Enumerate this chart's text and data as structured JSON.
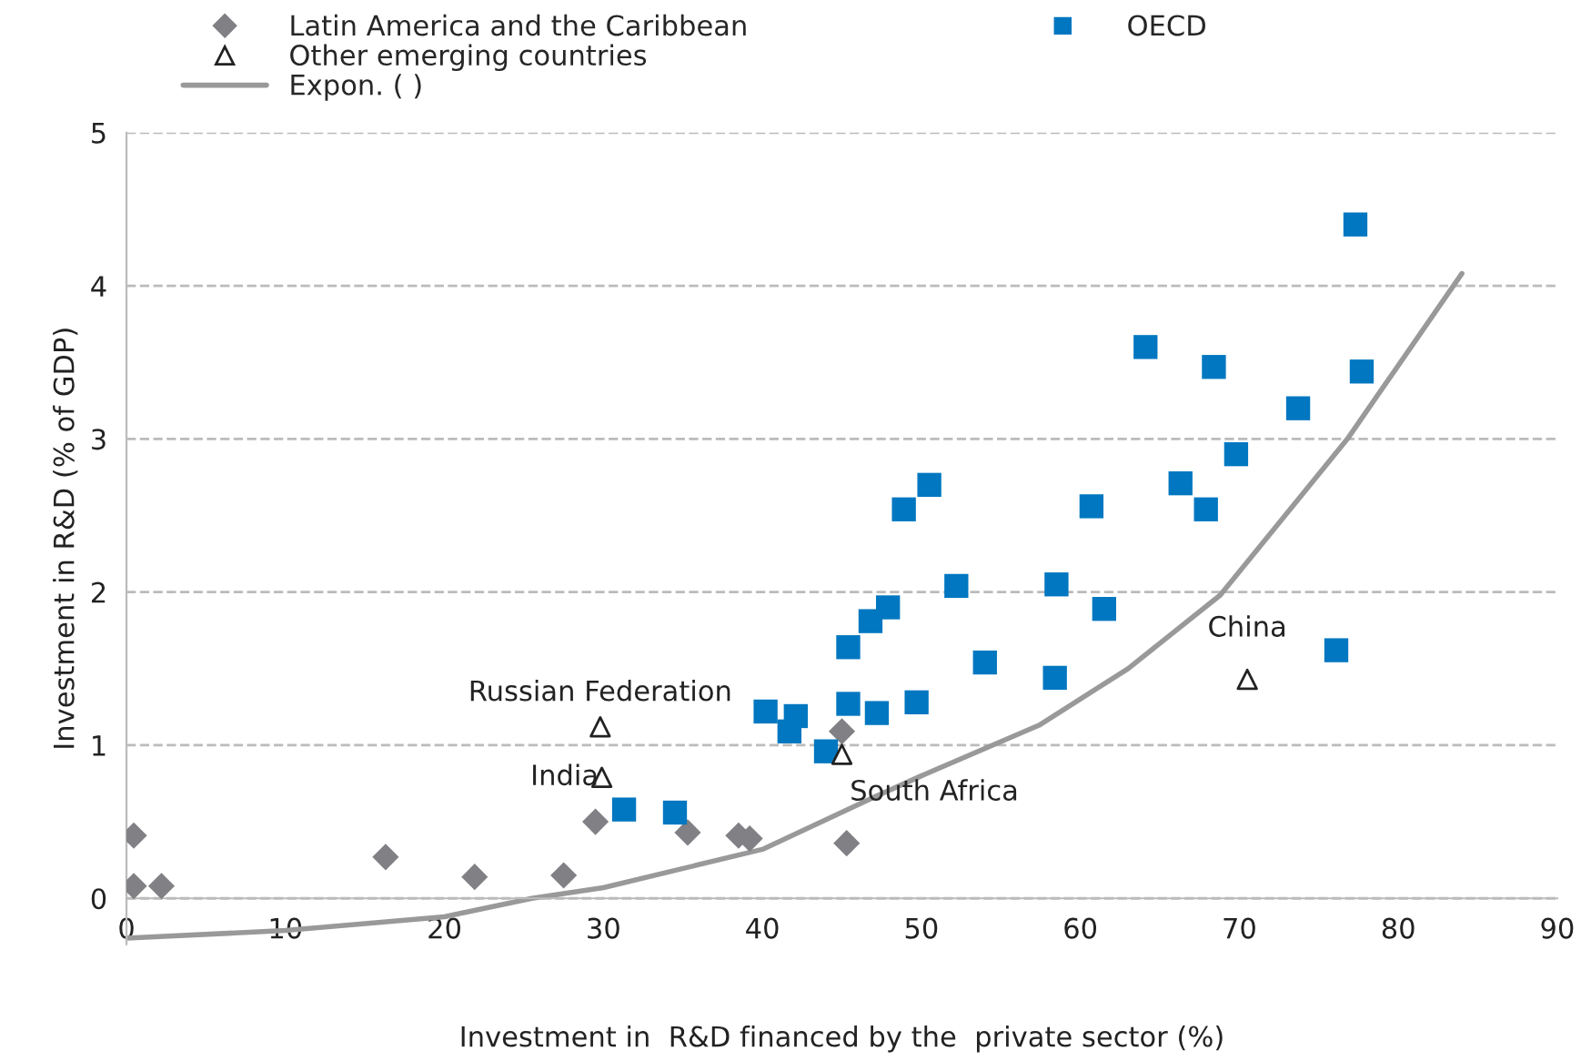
{
  "chart_data": {
    "type": "scatter",
    "xlabel": "Investment in  R&D financed by the  private sector (%)",
    "ylabel": "Investment in R&D (% of GDP)",
    "xlim": [
      0,
      90
    ],
    "xticks": [
      0,
      10,
      20,
      30,
      40,
      50,
      60,
      70,
      80,
      90
    ],
    "ylim": [
      -0.3,
      5
    ],
    "yticks": [
      0,
      1,
      2,
      3,
      4,
      5
    ],
    "grid": "y",
    "legend": "top",
    "series": [
      {
        "name": "Latin America and the Caribbean",
        "color": "#808085",
        "marker": "diamond",
        "x": [
          0.46,
          0.46,
          2.2,
          16.3,
          21.9,
          27.5,
          29.5,
          35.3,
          38.5,
          39.2,
          45.0,
          45.3
        ],
        "values": [
          0.41,
          0.08,
          0.08,
          0.27,
          0.14,
          0.15,
          0.5,
          0.43,
          0.41,
          0.39,
          1.09,
          0.36
        ]
      },
      {
        "name": "OECD",
        "color": "#0077c0",
        "marker": "square",
        "x": [
          77.3,
          64.1,
          68.4,
          77.7,
          73.7,
          69.8,
          50.5,
          48.9,
          60.7,
          66.3,
          67.9,
          52.2,
          58.5,
          47.9,
          46.8,
          61.5,
          45.4,
          76.1,
          54.0,
          58.4,
          49.7,
          45.4,
          47.2,
          40.2,
          42.1,
          41.7,
          44.0,
          31.3,
          34.5
        ],
        "values": [
          4.4,
          3.6,
          3.47,
          3.44,
          3.2,
          2.9,
          2.7,
          2.54,
          2.56,
          2.71,
          2.54,
          2.04,
          2.05,
          1.9,
          1.81,
          1.89,
          1.64,
          1.62,
          1.54,
          1.44,
          1.28,
          1.27,
          1.21,
          1.22,
          1.19,
          1.09,
          0.96,
          0.58,
          0.56
        ]
      },
      {
        "name": "Other emerging countries",
        "color": "#222222",
        "marker": "triangle",
        "x": [
          29.8,
          29.9,
          45.0,
          70.5
        ],
        "values": [
          1.12,
          0.79,
          0.94,
          1.43
        ]
      },
      {
        "name": "Expon. ( )",
        "type": "line",
        "color": "#999999",
        "marker": "none",
        "line_style": "solid",
        "x": [
          0,
          10,
          20,
          25.5,
          30,
          40,
          47,
          50,
          57.4,
          63,
          68.8,
          76.8,
          84
        ],
        "values": [
          -0.26,
          -0.21,
          -0.12,
          0,
          0.07,
          0.32,
          0.66,
          0.8,
          1.13,
          1.5,
          1.98,
          3.0,
          4.08
        ]
      }
    ],
    "annotations": [
      {
        "text": "Russian Federation",
        "x": 29.8,
        "y": 1.12
      },
      {
        "text": "India",
        "x": 29.9,
        "y": 0.79
      },
      {
        "text": "South Africa",
        "x": 45.0,
        "y": 0.94
      },
      {
        "text": "China",
        "x": 70.5,
        "y": 1.43
      }
    ]
  }
}
